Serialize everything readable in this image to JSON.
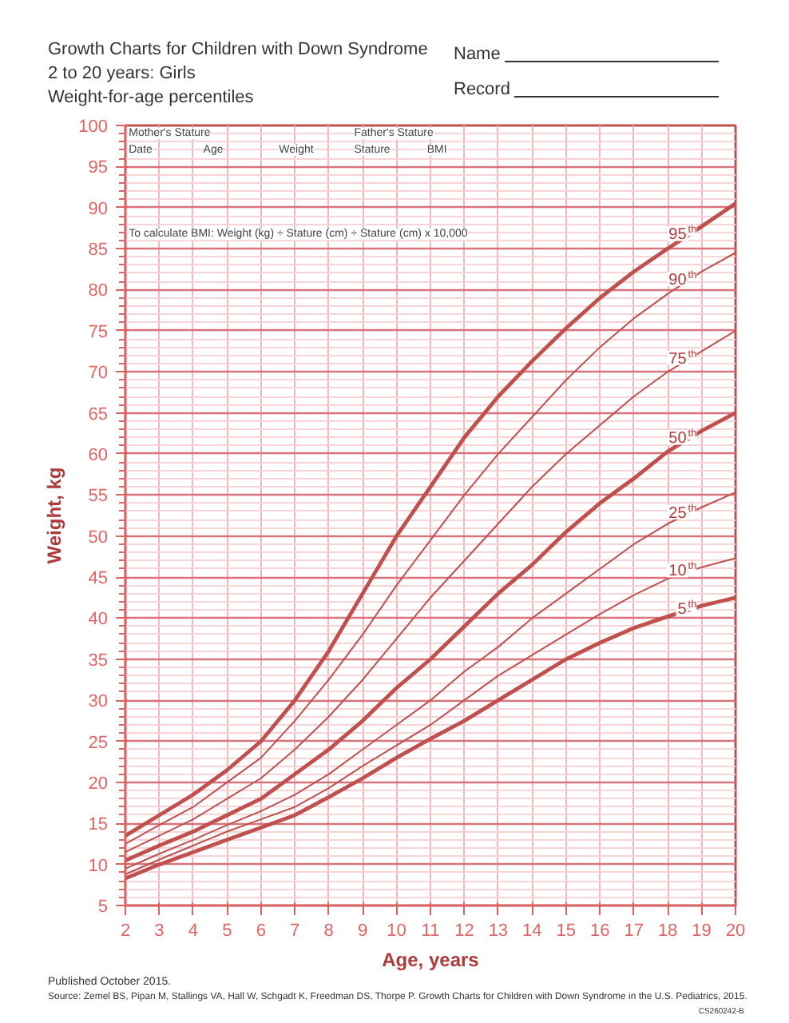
{
  "chart_data": {
    "type": "line",
    "title": "Growth Charts for Children with Down Syndrome",
    "subtitle": "2 to 20 years: Girls\nWeight-for-age percentiles",
    "xlabel": "Age, years",
    "ylabel": "Weight, kg",
    "x": [
      2,
      3,
      4,
      5,
      6,
      7,
      8,
      9,
      10,
      11,
      12,
      13,
      14,
      15,
      16,
      17,
      18,
      19,
      20
    ],
    "series": [
      {
        "name": "95$^{th}$",
        "color": "#c0504d",
        "values": [
          13.5,
          16,
          18.5,
          21.5,
          25,
          30,
          36,
          43,
          50,
          56,
          62,
          67,
          71.3,
          75.3,
          79,
          82.2,
          85,
          87.7,
          90.5
        ]
      },
      {
        "name": "90$^{th}$",
        "color": "#c0504d",
        "values": [
          12.5,
          14.8,
          17,
          20,
          23,
          27.5,
          32.5,
          38,
          44,
          49.5,
          55,
          60,
          64.5,
          69,
          73,
          76.5,
          79.5,
          82.2,
          84.5
        ]
      },
      {
        "name": "75$^{th}$",
        "color": "#c0504d",
        "values": [
          11.5,
          13.5,
          15.5,
          18,
          20.5,
          24,
          28,
          32.5,
          37.5,
          42.5,
          47,
          51.5,
          56,
          60,
          63.5,
          67,
          70,
          72.5,
          75
        ]
      },
      {
        "name": "50$^{th}$",
        "color": "#c0504d",
        "values": [
          10.5,
          12.3,
          14,
          16,
          18,
          21,
          24,
          27.5,
          31.5,
          35,
          39,
          43,
          46.5,
          50.5,
          54,
          57,
          60.3,
          62.8,
          65
        ]
      },
      {
        "name": "25$^{th}$",
        "color": "#c0504d",
        "values": [
          9.5,
          11.3,
          13,
          14.8,
          16.5,
          18.5,
          21,
          24,
          27,
          30,
          33.5,
          36.5,
          40,
          43,
          46,
          49,
          51.5,
          53.5,
          55.3
        ]
      },
      {
        "name": "10$^{th}$",
        "color": "#c0504d",
        "values": [
          8.8,
          10.6,
          12.3,
          14,
          15.5,
          17,
          19.3,
          22,
          24.5,
          27,
          30,
          33,
          35.5,
          38,
          40.5,
          42.8,
          44.8,
          46.2,
          47.3
        ]
      },
      {
        "name": "5$^{th}$",
        "color": "#c0504d",
        "values": [
          8.3,
          10,
          11.5,
          13,
          14.5,
          16,
          18.2,
          20.5,
          23,
          25.3,
          27.5,
          30,
          32.5,
          35,
          37,
          38.8,
          40.2,
          41.5,
          42.5
        ]
      }
    ],
    "xlim": [
      2,
      20
    ],
    "ylim": [
      5,
      100
    ],
    "xticks": [
      2,
      3,
      4,
      5,
      6,
      7,
      8,
      9,
      10,
      11,
      12,
      13,
      14,
      15,
      16,
      17,
      18,
      19,
      20
    ],
    "yticks": [
      5,
      10,
      15,
      20,
      25,
      30,
      35,
      40,
      45,
      50,
      55,
      60,
      65,
      70,
      75,
      80,
      85,
      90,
      95,
      100
    ],
    "grid": true,
    "annotations": [
      "Mother's Stature",
      "Father's Stature",
      "Date",
      "Age",
      "Weight",
      "Stature",
      "BMI",
      "To calculate BMI: Weight (kg) ÷ Stature (cm) ÷ Stature (cm) x 10,000",
      "Name",
      "Record",
      "Published October 2015.",
      "Source: Zemel BS, Pipan M, Stallings VA, Hall W, Schgadt K, Freedman DS, Thorpe P. Growth Charts for Children with Down Syndrome in the U.S. Pediatrics, 2015.",
      "CS260242-B"
    ]
  }
}
